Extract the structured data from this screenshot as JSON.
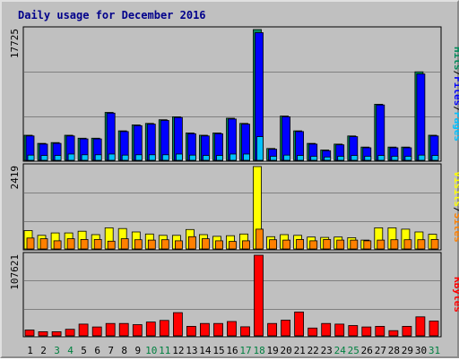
{
  "chart_data": {
    "title": "Daily usage for December 2016",
    "days": [
      "1",
      "2",
      "3",
      "4",
      "5",
      "6",
      "7",
      "8",
      "9",
      "10",
      "11",
      "12",
      "13",
      "14",
      "15",
      "16",
      "17",
      "18",
      "19",
      "20",
      "21",
      "22",
      "23",
      "24",
      "25",
      "26",
      "27",
      "28",
      "29",
      "30",
      "31"
    ],
    "weekend_days": [
      "3",
      "4",
      "10",
      "11",
      "17",
      "18",
      "24",
      "25",
      "31"
    ],
    "colors": {
      "title": "#00008b",
      "hits": "#008b5a",
      "files": "#0000ff",
      "pages": "#00c0ff",
      "visits": "#ffff00",
      "sites": "#ff8000",
      "kbytes": "#ff0000",
      "weekday_label": "#000000",
      "weekend_label": "#008040",
      "background": "#c0c0c0"
    },
    "panels": [
      {
        "type": "bar",
        "ymax_label": "17725",
        "ymax": 17725,
        "side_labels": [
          {
            "text": "Pages",
            "color": "#00c0ff"
          },
          {
            "text": "/",
            "color": "#000000"
          },
          {
            "text": "Files",
            "color": "#0000ff"
          },
          {
            "text": "/",
            "color": "#000000"
          },
          {
            "text": "Hits",
            "color": "#008b5a"
          }
        ],
        "series": [
          {
            "name": "Hits",
            "color": "#008b5a",
            "values": [
              3400,
              2300,
              2400,
              3400,
              3000,
              3000,
              6500,
              4000,
              4800,
              5000,
              5500,
              5900,
              3700,
              3400,
              3700,
              5700,
              5000,
              17725,
              1600,
              6000,
              4000,
              2300,
              1400,
              2200,
              3300,
              1800,
              7600,
              1800,
              1800,
              12000,
              3400
            ]
          },
          {
            "name": "Files",
            "color": "#0000ff",
            "values": [
              3300,
              2200,
              2300,
              3300,
              2900,
              2900,
              6400,
              3900,
              4700,
              4900,
              5400,
              5800,
              3600,
              3300,
              3600,
              5600,
              4900,
              17300,
              1500,
              5900,
              3900,
              2200,
              1300,
              2100,
              3200,
              1700,
              7500,
              1700,
              1700,
              11700,
              3300
            ]
          },
          {
            "name": "Pages",
            "color": "#00c0ff",
            "values": [
              700,
              650,
              650,
              850,
              750,
              750,
              850,
              700,
              750,
              750,
              750,
              850,
              700,
              650,
              650,
              850,
              850,
              3200,
              550,
              700,
              650,
              550,
              450,
              550,
              650,
              550,
              650,
              550,
              550,
              700,
              650
            ]
          }
        ]
      },
      {
        "type": "bar",
        "ymax_label": "2419",
        "ymax": 2419,
        "side_labels": [
          {
            "text": "Sites",
            "color": "#ff8000"
          },
          {
            "text": "/",
            "color": "#000000"
          },
          {
            "text": "Visits",
            "color": "#ffff00"
          }
        ],
        "series": [
          {
            "name": "Visits",
            "color": "#ffff00",
            "values": [
              540,
              400,
              470,
              470,
              520,
              420,
              620,
              600,
              500,
              440,
              400,
              400,
              570,
              420,
              370,
              390,
              440,
              2419,
              360,
              420,
              400,
              350,
              340,
              350,
              330,
              260,
              620,
              620,
              580,
              500,
              430
            ]
          },
          {
            "name": "Sites",
            "color": "#ff8000",
            "values": [
              320,
              300,
              240,
              300,
              280,
              280,
              230,
              300,
              270,
              260,
              270,
              240,
              360,
              300,
              240,
              220,
              240,
              580,
              270,
              260,
              280,
              240,
              280,
              260,
              260,
              240,
              260,
              270,
              270,
              270,
              280
            ]
          }
        ]
      },
      {
        "type": "bar",
        "ymax_label": "107621",
        "ymax": 107621,
        "side_labels": [
          {
            "text": "KBytes",
            "color": "#ff0000"
          }
        ],
        "series": [
          {
            "name": "KBytes",
            "color": "#ff0000",
            "values": [
              7800,
              5500,
              5500,
              8700,
              15700,
              11800,
              16500,
              16500,
              15000,
              18400,
              20600,
              31000,
              12700,
              16500,
              16500,
              19100,
              12100,
              107621,
              16500,
              20900,
              31800,
              10400,
              16500,
              15700,
              13700,
              11800,
              12700,
              6900,
              12700,
              25400,
              19700
            ]
          }
        ]
      }
    ]
  }
}
